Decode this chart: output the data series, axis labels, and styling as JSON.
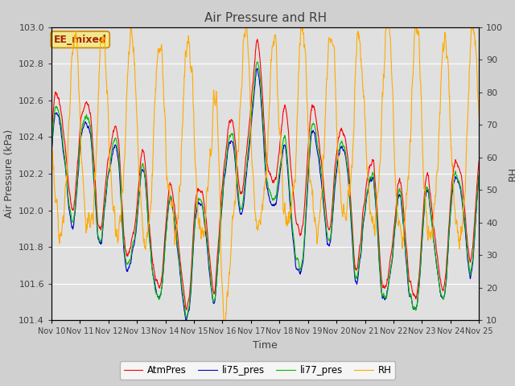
{
  "title": "Air Pressure and RH",
  "xlabel": "Time",
  "ylabel_left": "Air Pressure (kPa)",
  "ylabel_right": "RH",
  "annotation": "EE_mixed",
  "ylim_left": [
    101.4,
    103.0
  ],
  "ylim_right": [
    10,
    100
  ],
  "yticks_left": [
    101.4,
    101.6,
    101.8,
    102.0,
    102.2,
    102.4,
    102.6,
    102.8,
    103.0
  ],
  "yticks_right": [
    10,
    20,
    30,
    40,
    50,
    60,
    70,
    80,
    90,
    100
  ],
  "x_tick_labels": [
    "Nov 10",
    "Nov 11",
    "Nov 12",
    "Nov 13",
    "Nov 14",
    "Nov 15",
    "Nov 16",
    "Nov 17",
    "Nov 18",
    "Nov 19",
    "Nov 20",
    "Nov 21",
    "Nov 22",
    "Nov 23",
    "Nov 24",
    "Nov 25"
  ],
  "legend_labels": [
    "AtmPres",
    "li75_pres",
    "li77_pres",
    "RH"
  ],
  "line_colors": [
    "#ff0000",
    "#0000cc",
    "#00bb00",
    "#ffaa00"
  ],
  "fig_bg_color": "#d0d0d0",
  "plot_bg_color": "#e0e0e0",
  "annotation_bg_color": "#f0e890",
  "annotation_text_color": "#aa2200",
  "annotation_edge_color": "#cc8800",
  "grid_color": "#ffffff",
  "tick_label_color": "#404040",
  "axis_label_color": "#404040",
  "title_color": "#404040"
}
